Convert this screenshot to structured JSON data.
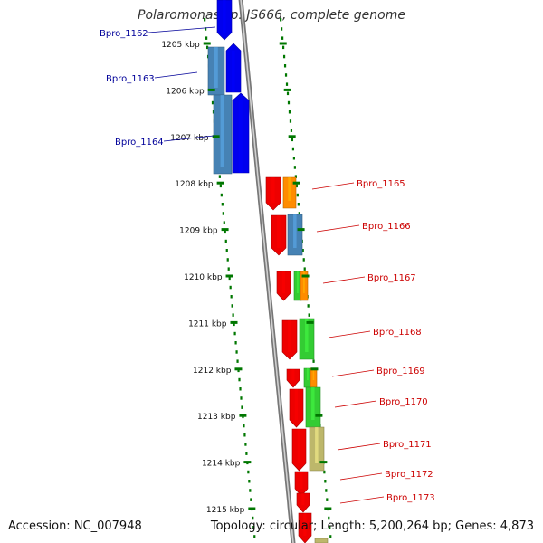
{
  "title": "Polaromonas sp. JS666, complete genome",
  "accession_text": "Accession: NC_007948",
  "topology_text": "Topology: circular; Length: 5,200,264 bp; Genes: 4,873",
  "colors": {
    "forward_label": "#000099",
    "reverse_label": "#cc0000",
    "tick": "#007700",
    "backbone": "#888888",
    "blue": "#0000ee",
    "steel_blue": "#4682b4",
    "red": "#ee0000",
    "orange": "#ff8c00",
    "green": "#33cc33",
    "khaki": "#bdb76b"
  },
  "kbp_labels": [
    "1205 kbp",
    "1206 kbp",
    "1207 kbp",
    "1208 kbp",
    "1209 kbp",
    "1210 kbp",
    "1211 kbp",
    "1212 kbp",
    "1213 kbp",
    "1214 kbp",
    "1215 kbp"
  ],
  "forward_genes": [
    "Bpro_1162",
    "Bpro_1163",
    "Bpro_1164"
  ],
  "reverse_genes": [
    "Bpro_1165",
    "Bpro_1166",
    "Bpro_1167",
    "Bpro_1168",
    "Bpro_1169",
    "Bpro_1170",
    "Bpro_1171",
    "Bpro_1172",
    "Bpro_1173"
  ]
}
